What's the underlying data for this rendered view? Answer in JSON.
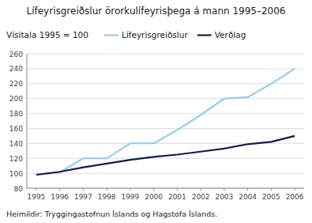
{
  "chart_data": {
    "type": "line",
    "title": "Lífeyrisgreiðslur örorkulífeyrisþega á mann 1995–2006",
    "subtitle": "Vísitala 1995 = 100",
    "footer": "Heimildir: Tryggingastofnun Íslands og Hagstofa Íslands.",
    "x": [
      1995,
      1996,
      1997,
      1998,
      1999,
      2000,
      2001,
      2002,
      2003,
      2004,
      2005,
      2006
    ],
    "series": [
      {
        "name": "Lífeyrisgreiðslur",
        "color": "#88ccee",
        "values": [
          98,
          101,
          120,
          120,
          140,
          140,
          158,
          178,
          200,
          202,
          220,
          240
        ]
      },
      {
        "name": "Verðlag",
        "color": "#1a1a4e",
        "values": [
          98,
          102,
          108,
          113,
          118,
          122,
          125,
          129,
          133,
          139,
          142,
          150
        ]
      }
    ],
    "xlim": [
      1994.6,
      2006.4
    ],
    "xticks": [
      1995,
      1996,
      1997,
      1998,
      1999,
      2000,
      2001,
      2002,
      2003,
      2004,
      2005,
      2006
    ],
    "ylim": [
      80,
      260
    ],
    "yticks": [
      80,
      100,
      120,
      140,
      160,
      180,
      200,
      220,
      240,
      260
    ],
    "grid": true,
    "legend": "top"
  }
}
